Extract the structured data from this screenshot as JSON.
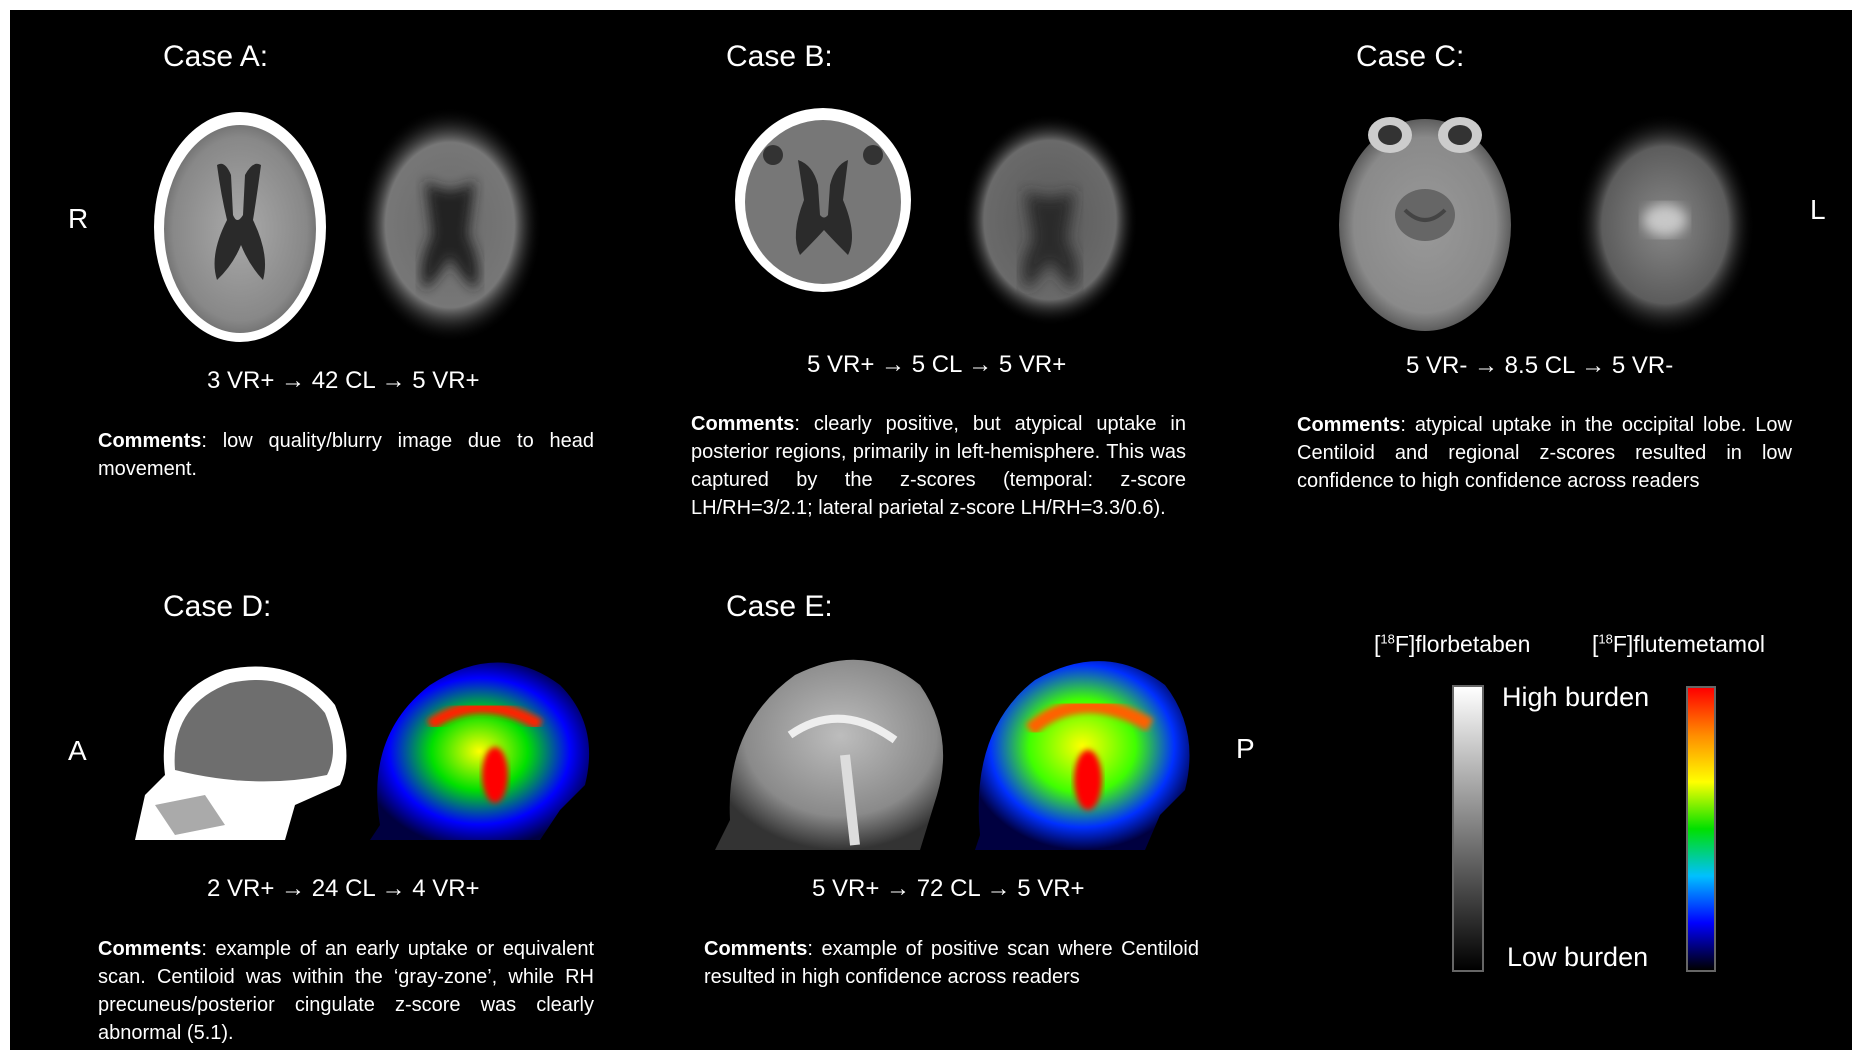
{
  "orientation": {
    "right": "R",
    "left": "L",
    "anterior": "A",
    "posterior": "P"
  },
  "cases": [
    {
      "title": "Case A:",
      "flow": "3 VR+ → 42 CL → 5 VR+",
      "comment_label": "Comments",
      "comment": ": low quality/blurry image due to head movement."
    },
    {
      "title": "Case B:",
      "flow": "5 VR+ → 5 CL → 5 VR+",
      "comment_label": "Comments",
      "comment": ": clearly positive, but atypical uptake in posterior regions, primarily in left-hemisphere. This was captured by the z-scores (temporal: z-score LH/RH=3/2.1; lateral parietal z-score LH/RH=3.3/0.6)."
    },
    {
      "title": "Case C:",
      "flow": "5 VR- → 8.5 CL → 5 VR-",
      "comment_label": "Comments",
      "comment": ": atypical uptake in the occipital lobe. Low Centiloid and regional z-scores resulted in low confidence to high confidence across readers"
    },
    {
      "title": "Case D:",
      "flow": "2 VR+ → 24 CL → 4 VR+",
      "comment_label": "Comments",
      "comment": ": example of an early uptake or equivalent scan. Centiloid was within the ‘gray-zone’, while RH precuneus/posterior cingulate z-score was clearly abnormal (5.1)."
    },
    {
      "title": "Case E:",
      "flow": "5 VR+ → 72 CL → 5 VR+",
      "comment_label": "Comments",
      "comment": ": example of positive scan where Centiloid resulted in high confidence across readers"
    }
  ],
  "legend": {
    "tracer1_iso": "18",
    "tracer1_name": "F]florbetaben",
    "tracer2_iso": "18",
    "tracer2_name": "F]flutemetamol",
    "high_label": "High burden",
    "low_label": "Low burden",
    "gray_colors": [
      "#ffffff",
      "#000000"
    ],
    "rainbow_colors": [
      "#ff0000",
      "#ff8c00",
      "#ffff00",
      "#00e000",
      "#00c0ff",
      "#0000ff",
      "#000000"
    ]
  }
}
